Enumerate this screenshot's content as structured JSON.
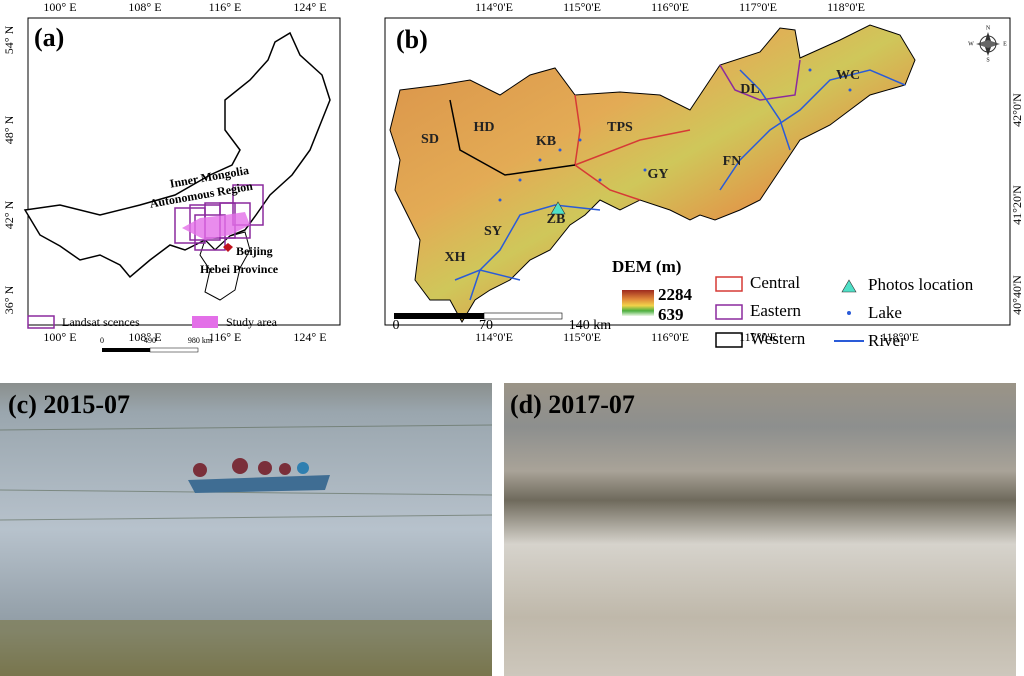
{
  "panel_a": {
    "label": "(a)",
    "lat_labels": [
      "54° N",
      "48° N",
      "42° N",
      "36° N"
    ],
    "lon_labels": [
      "100° E",
      "108° E",
      "116° E",
      "124° E"
    ],
    "region_label": [
      "Inner Mongolia",
      "Autonomous Region"
    ],
    "city": "Beijing",
    "province": "Hebei Province",
    "legend": [
      "Landsat scences",
      "Study area"
    ],
    "scale": [
      "0",
      "490",
      "980 km"
    ]
  },
  "panel_b": {
    "label": "(b)",
    "lon_labels": [
      "114°0'E",
      "115°0'E",
      "116°0'E",
      "117°0'E",
      "118°0'E"
    ],
    "lat_labels": [
      "42°0'N",
      "41°20'N",
      "40°40'N"
    ],
    "regions": [
      "SD",
      "HD",
      "KB",
      "TPS",
      "GY",
      "ZB",
      "SY",
      "XH",
      "DL",
      "FN",
      "WC"
    ],
    "dem": {
      "title": "DEM (m)",
      "max": 2284,
      "min": 639
    },
    "legend": [
      "Central",
      "Eastern",
      "Western",
      "Photos location",
      "Lake",
      "River"
    ],
    "scale": [
      "0",
      "70",
      "140 km"
    ],
    "compass": [
      "N",
      "E",
      "S",
      "W"
    ]
  },
  "photos": [
    {
      "label": "(c) 2015-07"
    },
    {
      "label": "(d) 2017-07"
    }
  ]
}
